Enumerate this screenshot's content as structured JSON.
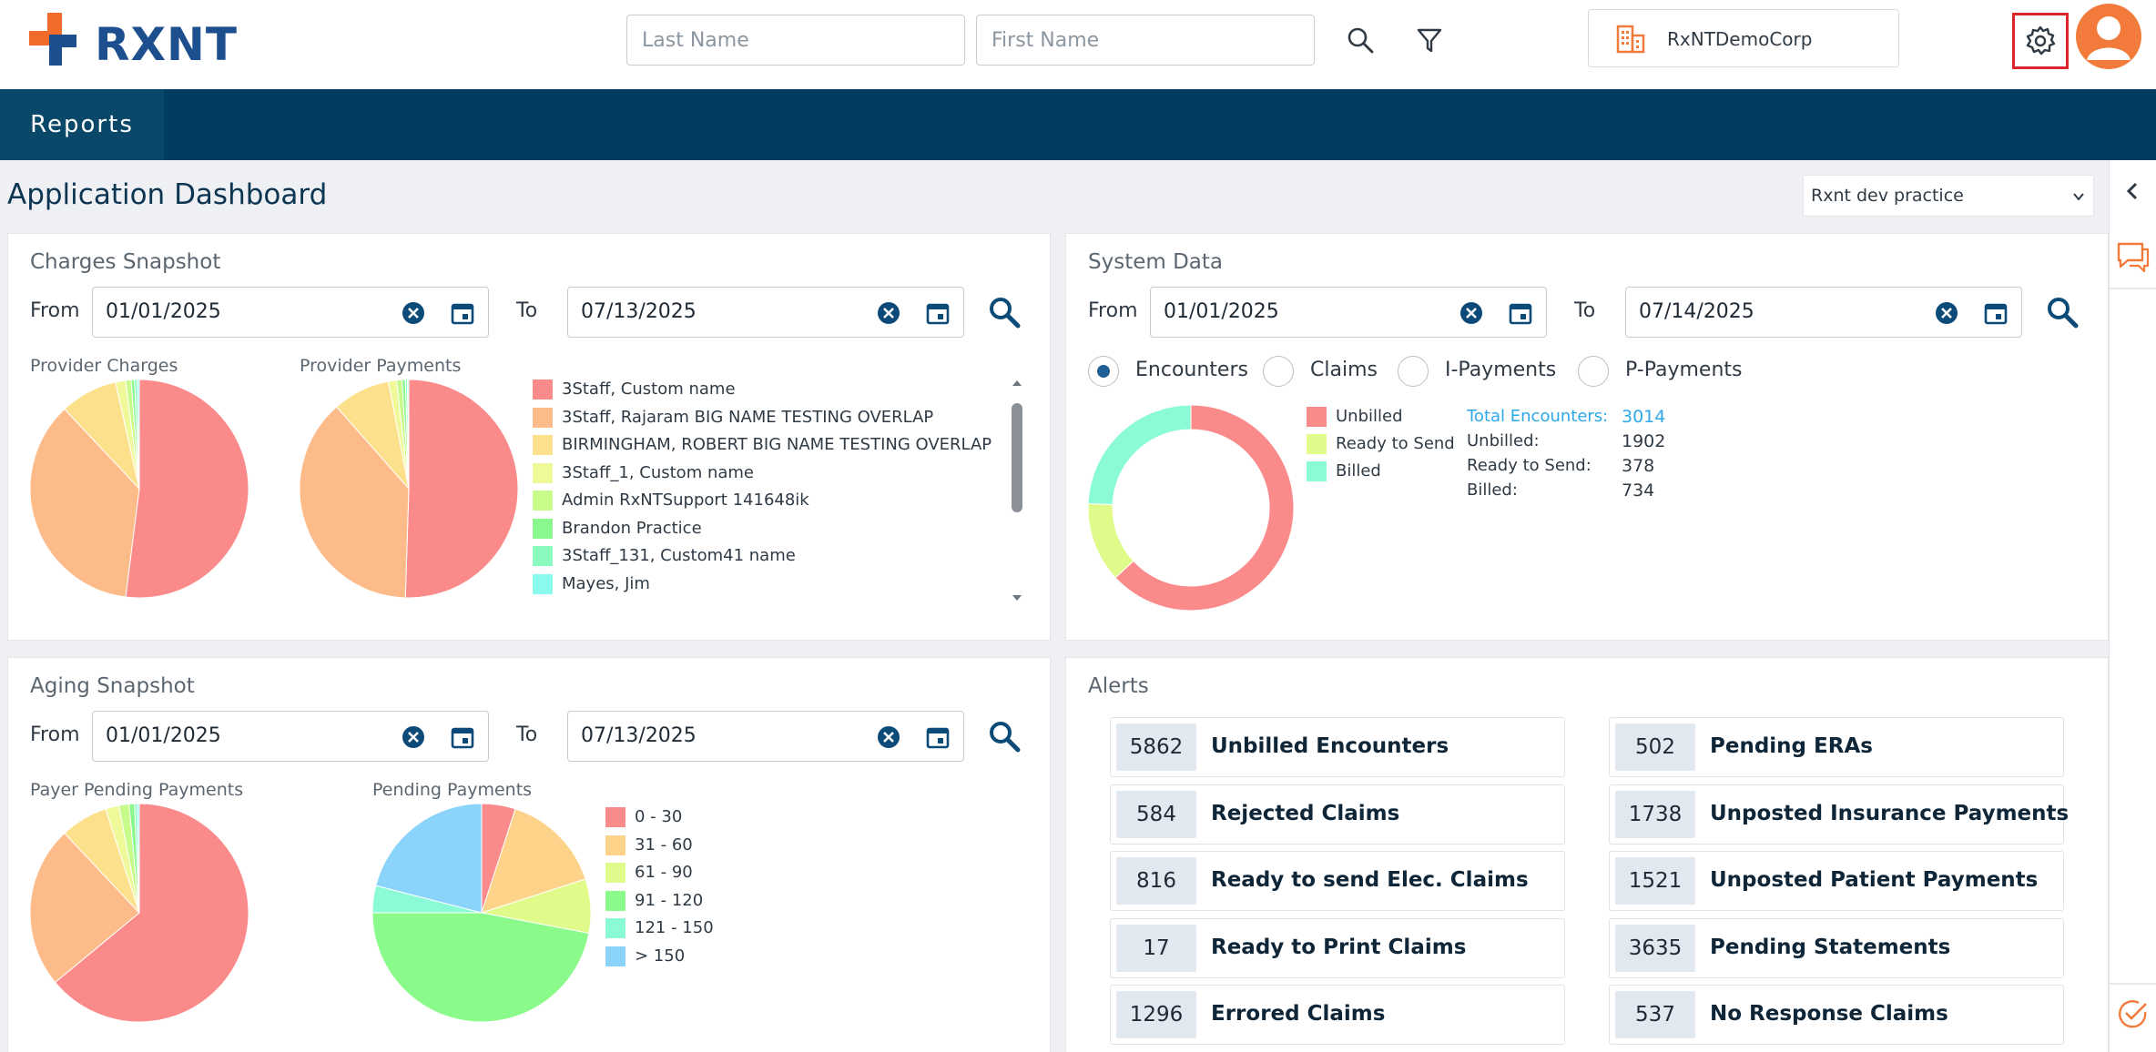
{
  "header": {
    "logo_text": "RXNT",
    "last_name_placeholder": "Last Name",
    "first_name_placeholder": "First Name",
    "org_name": "RxNTDemoCorp"
  },
  "nav": {
    "reports": "Reports"
  },
  "page": {
    "title": "Application Dashboard",
    "practice": "Rxnt dev practice"
  },
  "charges": {
    "title": "Charges Snapshot",
    "from_label": "From",
    "to_label": "To",
    "from": "01/01/2025",
    "to": "07/13/2025",
    "provider_charges_label": "Provider Charges",
    "provider_payments_label": "Provider Payments",
    "legend": [
      {
        "name": "3Staff, Custom name",
        "color": "#fb8a8a"
      },
      {
        "name": "3Staff, Rajaram BIG NAME TESTING OVERLAP",
        "color": "#fdbb8a"
      },
      {
        "name": "BIRMINGHAM, ROBERT BIG NAME TESTING OVERLAP",
        "color": "#fde08c"
      },
      {
        "name": "3Staff_1, Custom name",
        "color": "#f0f99a"
      },
      {
        "name": "Admin RxNTSupport 141648ik",
        "color": "#c7fb8a"
      },
      {
        "name": "Brandon Practice",
        "color": "#8af88c"
      },
      {
        "name": "3Staff_131, Custom41 name",
        "color": "#8afbbf"
      },
      {
        "name": "Mayes, Jim",
        "color": "#8afbee"
      }
    ]
  },
  "system": {
    "title": "System Data",
    "from_label": "From",
    "to_label": "To",
    "from": "01/01/2025",
    "to": "07/14/2025",
    "radios": [
      "Encounters",
      "Claims",
      "I-Payments",
      "P-Payments"
    ],
    "selected": "Encounters",
    "legend": [
      {
        "name": "Unbilled",
        "color": "#fb8a8a"
      },
      {
        "name": "Ready to Send",
        "color": "#e0fb8a"
      },
      {
        "name": "Billed",
        "color": "#8afbd6"
      }
    ],
    "stats": {
      "total_label": "Total Encounters:",
      "total_value": "3014",
      "unbilled_label": "Unbilled:",
      "unbilled_value": "1902",
      "ready_label": "Ready to Send:",
      "ready_value": "378",
      "billed_label": "Billed:",
      "billed_value": "734"
    }
  },
  "aging": {
    "title": "Aging Snapshot",
    "from_label": "From",
    "to_label": "To",
    "from": "01/01/2025",
    "to": "07/13/2025",
    "payer_label": "Payer Pending Payments",
    "pending_label": "Pending Payments",
    "legend": [
      {
        "name": "0 - 30",
        "color": "#fb8a8a"
      },
      {
        "name": "31 - 60",
        "color": "#fdd38a"
      },
      {
        "name": "61 - 90",
        "color": "#e0fb8a"
      },
      {
        "name": "91 - 120",
        "color": "#8afb8a"
      },
      {
        "name": "121 - 150",
        "color": "#8afbd6"
      },
      {
        "name": "> 150",
        "color": "#8ad3fb"
      }
    ]
  },
  "alerts": {
    "title": "Alerts",
    "left": [
      {
        "count": "5862",
        "label": "Unbilled Encounters"
      },
      {
        "count": "584",
        "label": "Rejected Claims"
      },
      {
        "count": "816",
        "label": "Ready to send Elec. Claims"
      },
      {
        "count": "17",
        "label": "Ready to Print Claims"
      },
      {
        "count": "1296",
        "label": "Errored Claims"
      }
    ],
    "right": [
      {
        "count": "502",
        "label": "Pending ERAs"
      },
      {
        "count": "1738",
        "label": "Unposted Insurance Payments"
      },
      {
        "count": "1521",
        "label": "Unposted Patient Payments"
      },
      {
        "count": "3635",
        "label": "Pending Statements"
      },
      {
        "count": "537",
        "label": "No Response Claims"
      }
    ]
  },
  "chart_data": [
    {
      "type": "pie",
      "title": "Provider Charges",
      "categories": [
        "3Staff, Custom name",
        "3Staff, Rajaram BIG NAME TESTING OVERLAP",
        "BIRMINGHAM, ROBERT BIG NAME TESTING OVERLAP",
        "3Staff_1, Custom name",
        "Admin RxNTSupport 141648ik",
        "Brandon Practice",
        "3Staff_131, Custom41 name",
        "Mayes, Jim"
      ],
      "values": [
        52,
        36,
        8.5,
        1.5,
        0.8,
        0.5,
        0.4,
        0.3
      ]
    },
    {
      "type": "pie",
      "title": "Provider Payments",
      "categories": [
        "3Staff, Custom name",
        "3Staff, Rajaram BIG NAME TESTING OVERLAP",
        "BIRMINGHAM, ROBERT BIG NAME TESTING OVERLAP",
        "3Staff_1, Custom name",
        "Admin RxNTSupport 141648ik",
        "Brandon Practice",
        "3Staff_131, Custom41 name",
        "Mayes, Jim"
      ],
      "values": [
        50.5,
        38,
        8.5,
        1.2,
        0.8,
        0.5,
        0.3,
        0.2
      ]
    },
    {
      "type": "pie",
      "title": "Encounters",
      "categories": [
        "Unbilled",
        "Ready to Send",
        "Billed"
      ],
      "values": [
        1902,
        378,
        734
      ]
    },
    {
      "type": "pie",
      "title": "Payer Pending Payments",
      "categories": [
        "3Staff, Custom name",
        "3Staff, Rajaram BIG NAME TESTING OVERLAP",
        "BIRMINGHAM, ROBERT BIG NAME TESTING OVERLAP",
        "3Staff_1, Custom name",
        "Admin RxNTSupport 141648ik",
        "Brandon Practice",
        "3Staff_131, Custom41 name",
        "Mayes, Jim"
      ],
      "values": [
        64,
        24,
        7,
        2,
        1.5,
        0.8,
        0.4,
        0.3
      ]
    },
    {
      "type": "pie",
      "title": "Pending Payments",
      "categories": [
        "0 - 30",
        "31 - 60",
        "61 - 90",
        "91 - 120",
        "121 - 150",
        "> 150"
      ],
      "values": [
        5,
        15,
        8,
        47,
        4,
        21
      ]
    }
  ]
}
